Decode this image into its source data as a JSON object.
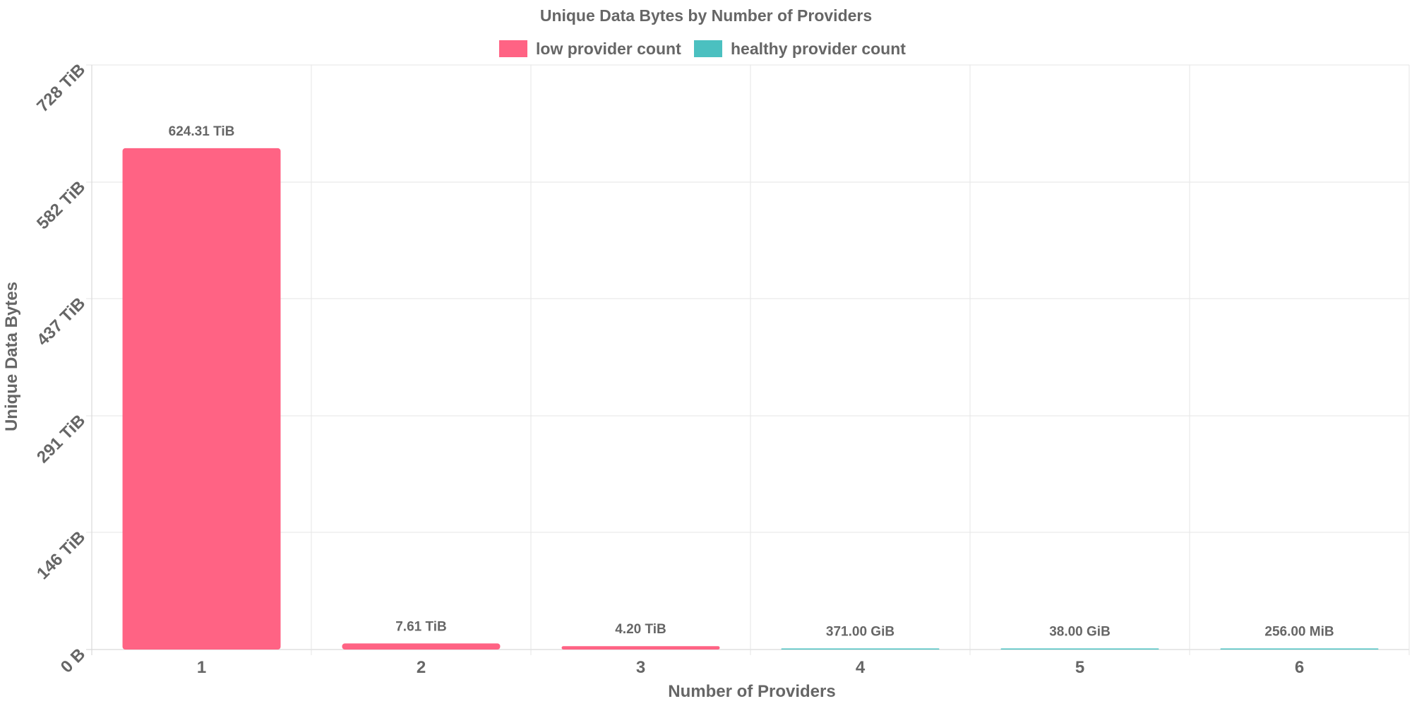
{
  "chart_data": {
    "type": "bar",
    "title": "Unique Data Bytes by Number of Providers",
    "xlabel": "Number of Providers",
    "ylabel": "Unique Data Bytes",
    "categories": [
      "1",
      "2",
      "3",
      "4",
      "5",
      "6"
    ],
    "values_tib": [
      624.31,
      7.61,
      4.2,
      0.3623,
      0.0371,
      0.000244
    ],
    "value_labels": [
      "624.31 TiB",
      "7.61 TiB",
      "4.20 TiB",
      "371.00 GiB",
      "38.00 GiB",
      "256.00 MiB"
    ],
    "bar_series": [
      "low provider count",
      "low provider count",
      "low provider count",
      "healthy provider count",
      "healthy provider count",
      "healthy provider count"
    ],
    "series": [
      {
        "name": "low provider count",
        "color": "#ff6384"
      },
      {
        "name": "healthy provider count",
        "color": "#4bc0c0"
      }
    ],
    "ylim": [
      0,
      728
    ],
    "yticks": [
      0,
      146,
      291,
      437,
      582,
      728
    ],
    "ytick_labels": [
      "0 B",
      "146 TiB",
      "291 TiB",
      "437 TiB",
      "582 TiB",
      "728 TiB"
    ],
    "legend_position": "top-center",
    "grid": true
  }
}
